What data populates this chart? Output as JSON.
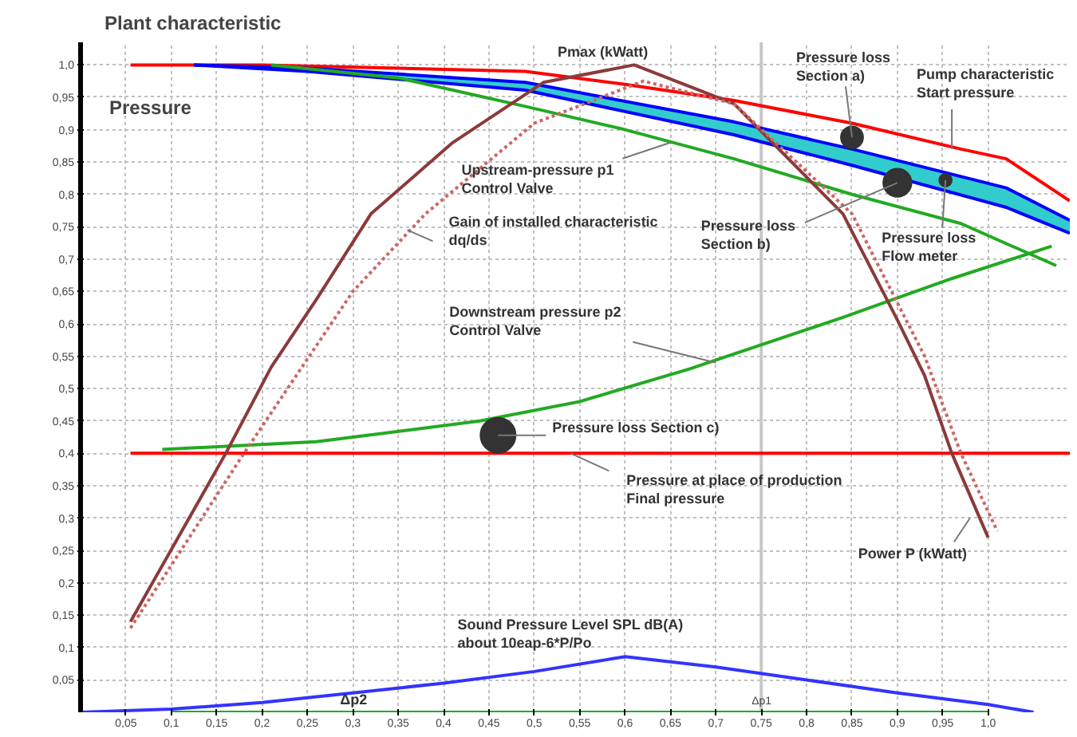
{
  "chart_data": {
    "type": "line",
    "title": "Plant characteristic",
    "ylabel": "Pressure",
    "xlim": [
      0,
      1.09
    ],
    "ylim": [
      0,
      1.035
    ],
    "xticks": [
      {
        "value": 0.05,
        "label": "0,05"
      },
      {
        "value": 0.1,
        "label": "0,1"
      },
      {
        "value": 0.15,
        "label": "0,15"
      },
      {
        "value": 0.2,
        "label": "0,2"
      },
      {
        "value": 0.25,
        "label": "0,25"
      },
      {
        "value": 0.3,
        "label": "0,3"
      },
      {
        "value": 0.35,
        "label": "0,35"
      },
      {
        "value": 0.4,
        "label": "0,4"
      },
      {
        "value": 0.45,
        "label": "0,45"
      },
      {
        "value": 0.5,
        "label": "0,5"
      },
      {
        "value": 0.55,
        "label": "0,55"
      },
      {
        "value": 0.6,
        "label": "0,6"
      },
      {
        "value": 0.65,
        "label": "0,65"
      },
      {
        "value": 0.7,
        "label": "0,7"
      },
      {
        "value": 0.75,
        "label": "0,75"
      },
      {
        "value": 0.8,
        "label": "0,8"
      },
      {
        "value": 0.85,
        "label": "0,85"
      },
      {
        "value": 0.9,
        "label": "0,9"
      },
      {
        "value": 0.95,
        "label": "0,95"
      },
      {
        "value": 1.0,
        "label": "1,0"
      }
    ],
    "yticks": [
      {
        "value": 0.05,
        "label": "0,05"
      },
      {
        "value": 0.1,
        "label": "0,1"
      },
      {
        "value": 0.15,
        "label": "0,15"
      },
      {
        "value": 0.2,
        "label": "0,2"
      },
      {
        "value": 0.25,
        "label": "0,25"
      },
      {
        "value": 0.3,
        "label": "0,3"
      },
      {
        "value": 0.35,
        "label": "0,35"
      },
      {
        "value": 0.4,
        "label": "0,4"
      },
      {
        "value": 0.45,
        "label": "0,45"
      },
      {
        "value": 0.5,
        "label": "0,5"
      },
      {
        "value": 0.55,
        "label": "0,55"
      },
      {
        "value": 0.6,
        "label": "0,6"
      },
      {
        "value": 0.65,
        "label": "0,65"
      },
      {
        "value": 0.7,
        "label": "0,7"
      },
      {
        "value": 0.75,
        "label": "0,75"
      },
      {
        "value": 0.8,
        "label": "0,8"
      },
      {
        "value": 0.85,
        "label": "0,85"
      },
      {
        "value": 0.9,
        "label": "0,9"
      },
      {
        "value": 0.95,
        "label": "0,95"
      },
      {
        "value": 1.0,
        "label": "1,0"
      }
    ],
    "grid": true,
    "ref_lines": [
      {
        "axis": "x",
        "value": 0.75,
        "label": "Δp1",
        "color": "#c8c8c8"
      }
    ],
    "series": [
      {
        "color": "#ff0000",
        "x": [
          0.055,
          0.2,
          0.35,
          0.49,
          0.6,
          0.72,
          0.85,
          0.97,
          1.02,
          1.09
        ],
        "values": [
          1.0,
          1.0,
          0.995,
          0.99,
          0.97,
          0.945,
          0.91,
          0.87,
          0.855,
          0.79
        ]
      },
      {
        "color": "#0000ff",
        "x": [
          0.125,
          0.25,
          0.49,
          0.72,
          0.85,
          1.02,
          1.09
        ],
        "values": [
          1.0,
          0.995,
          0.973,
          0.912,
          0.87,
          0.81,
          0.76
        ],
        "lower": [
          1.0,
          0.99,
          0.961,
          0.892,
          0.845,
          0.78,
          0.74
        ],
        "upper": [
          1.0,
          0.995,
          0.973,
          0.912,
          0.87,
          0.81,
          0.76
        ]
      },
      {
        "color": "#0000ff",
        "x": [
          0.125,
          0.25,
          0.49,
          0.72,
          0.85,
          1.02,
          1.09
        ],
        "values": [
          1.0,
          0.99,
          0.961,
          0.892,
          0.845,
          0.78,
          0.74
        ]
      },
      {
        "color": "#22aa22",
        "x": [
          0.21,
          0.35,
          0.49,
          0.6,
          0.72,
          0.85,
          0.97,
          1.075
        ],
        "values": [
          1.0,
          0.98,
          0.936,
          0.9,
          0.855,
          0.8,
          0.755,
          0.69
        ]
      },
      {
        "color": "#22aa22",
        "x": [
          0.09,
          0.26,
          0.44,
          0.55,
          0.67,
          0.84,
          0.96,
          1.07
        ],
        "values": [
          0.406,
          0.418,
          0.45,
          0.48,
          0.53,
          0.61,
          0.67,
          0.72
        ]
      },
      {
        "color": "#ff0000",
        "x": [
          0.055,
          1.09
        ],
        "values": [
          0.4,
          0.4
        ]
      },
      {
        "color": "#8b3a3a",
        "x": [
          0.055,
          0.16,
          0.21,
          0.26,
          0.32,
          0.41,
          0.51,
          0.61,
          0.72,
          0.84,
          0.9,
          0.93,
          0.96,
          1.0
        ],
        "values": [
          0.14,
          0.4,
          0.533,
          0.638,
          0.77,
          0.88,
          0.973,
          1.0,
          0.94,
          0.77,
          0.606,
          0.52,
          0.4,
          0.27
        ]
      },
      {
        "color": "#cc6666",
        "line_style": "dotted",
        "x": [
          0.055,
          0.18,
          0.3,
          0.38,
          0.5,
          0.62,
          0.72,
          0.85,
          0.93,
          0.97,
          1.01
        ],
        "values": [
          0.13,
          0.4,
          0.65,
          0.77,
          0.91,
          0.975,
          0.94,
          0.77,
          0.55,
          0.4,
          0.28
        ]
      },
      {
        "color": "#3333ff",
        "x": [
          0,
          0.1,
          0.2,
          0.3,
          0.4,
          0.5,
          0.6,
          0.7,
          0.8,
          0.9,
          1.0,
          1.05
        ],
        "values": [
          0,
          0.005,
          0.015,
          0.03,
          0.045,
          0.063,
          0.086,
          0.07,
          0.05,
          0.03,
          0.012,
          0.0
        ]
      },
      {
        "color": "#22aa22",
        "x": [
          0.1,
          1.0
        ],
        "values": [
          0,
          0
        ]
      },
      {
        "type": "bubble",
        "color": "#333333",
        "x": [
          0.85,
          0.9,
          0.953,
          0.46
        ],
        "values": [
          0.888,
          0.818,
          0.822,
          0.428
        ],
        "sizes": [
          0.4,
          0.65,
          0.13,
          1
        ]
      }
    ],
    "annotations": [
      {
        "text": "Pmax (kWatt)",
        "x": 0.61,
        "y": 1.0
      },
      {
        "text": "Pressure loss\nSection a)",
        "x": 0.85,
        "y": 0.888
      },
      {
        "text": "Pump characteristic\nStart pressure",
        "x": 0.96,
        "y": 0.87
      },
      {
        "text": "Upstream-pressure p1\nControl Valve",
        "x": 0.65,
        "y": 0.88
      },
      {
        "text": "Gain of installed characteristic\ndq/ds",
        "x": 0.36,
        "y": 0.745
      },
      {
        "text": "Downstream pressure p2\nControl Valve",
        "x": 0.7,
        "y": 0.54
      },
      {
        "text": "Pressure loss\nSection b)",
        "x": 0.9,
        "y": 0.818
      },
      {
        "text": "Pressure loss\nFlow meter",
        "x": 0.953,
        "y": 0.822
      },
      {
        "text": "Pressure loss Section c)",
        "x": 0.46,
        "y": 0.428
      },
      {
        "text": "Pressure at place of production\nFinal pressure",
        "x": 0.54,
        "y": 0.4
      },
      {
        "text": "Power P (kWatt)",
        "x": 0.98,
        "y": 0.3
      },
      {
        "text": "Sound Pressure Level SPL dB(A)\nabout 10eap-6*P/Po",
        "x": 0.6,
        "y": 0.086
      },
      {
        "text": "Δp2",
        "x": 0.3,
        "y": 0
      }
    ]
  }
}
